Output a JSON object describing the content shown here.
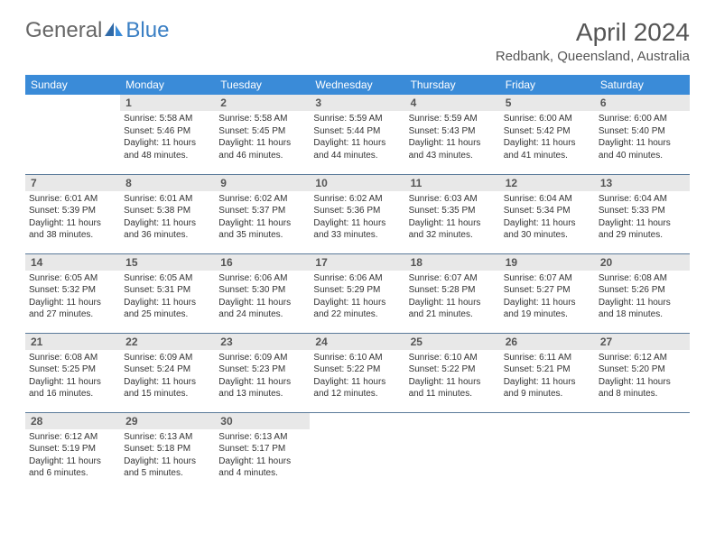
{
  "logo": {
    "text_general": "General",
    "text_blue": "Blue"
  },
  "title": "April 2024",
  "location": "Redbank, Queensland, Australia",
  "colors": {
    "header_bg": "#3a8bd8",
    "header_text": "#ffffff",
    "daynum_bg": "#e8e8e8",
    "rule": "#5a7a9a",
    "logo_blue": "#3a7fc4",
    "text": "#333333"
  },
  "weekdays": [
    "Sunday",
    "Monday",
    "Tuesday",
    "Wednesday",
    "Thursday",
    "Friday",
    "Saturday"
  ],
  "weeks": [
    [
      null,
      {
        "n": "1",
        "sr": "5:58 AM",
        "ss": "5:46 PM",
        "dl": "11 hours and 48 minutes."
      },
      {
        "n": "2",
        "sr": "5:58 AM",
        "ss": "5:45 PM",
        "dl": "11 hours and 46 minutes."
      },
      {
        "n": "3",
        "sr": "5:59 AM",
        "ss": "5:44 PM",
        "dl": "11 hours and 44 minutes."
      },
      {
        "n": "4",
        "sr": "5:59 AM",
        "ss": "5:43 PM",
        "dl": "11 hours and 43 minutes."
      },
      {
        "n": "5",
        "sr": "6:00 AM",
        "ss": "5:42 PM",
        "dl": "11 hours and 41 minutes."
      },
      {
        "n": "6",
        "sr": "6:00 AM",
        "ss": "5:40 PM",
        "dl": "11 hours and 40 minutes."
      }
    ],
    [
      {
        "n": "7",
        "sr": "6:01 AM",
        "ss": "5:39 PM",
        "dl": "11 hours and 38 minutes."
      },
      {
        "n": "8",
        "sr": "6:01 AM",
        "ss": "5:38 PM",
        "dl": "11 hours and 36 minutes."
      },
      {
        "n": "9",
        "sr": "6:02 AM",
        "ss": "5:37 PM",
        "dl": "11 hours and 35 minutes."
      },
      {
        "n": "10",
        "sr": "6:02 AM",
        "ss": "5:36 PM",
        "dl": "11 hours and 33 minutes."
      },
      {
        "n": "11",
        "sr": "6:03 AM",
        "ss": "5:35 PM",
        "dl": "11 hours and 32 minutes."
      },
      {
        "n": "12",
        "sr": "6:04 AM",
        "ss": "5:34 PM",
        "dl": "11 hours and 30 minutes."
      },
      {
        "n": "13",
        "sr": "6:04 AM",
        "ss": "5:33 PM",
        "dl": "11 hours and 29 minutes."
      }
    ],
    [
      {
        "n": "14",
        "sr": "6:05 AM",
        "ss": "5:32 PM",
        "dl": "11 hours and 27 minutes."
      },
      {
        "n": "15",
        "sr": "6:05 AM",
        "ss": "5:31 PM",
        "dl": "11 hours and 25 minutes."
      },
      {
        "n": "16",
        "sr": "6:06 AM",
        "ss": "5:30 PM",
        "dl": "11 hours and 24 minutes."
      },
      {
        "n": "17",
        "sr": "6:06 AM",
        "ss": "5:29 PM",
        "dl": "11 hours and 22 minutes."
      },
      {
        "n": "18",
        "sr": "6:07 AM",
        "ss": "5:28 PM",
        "dl": "11 hours and 21 minutes."
      },
      {
        "n": "19",
        "sr": "6:07 AM",
        "ss": "5:27 PM",
        "dl": "11 hours and 19 minutes."
      },
      {
        "n": "20",
        "sr": "6:08 AM",
        "ss": "5:26 PM",
        "dl": "11 hours and 18 minutes."
      }
    ],
    [
      {
        "n": "21",
        "sr": "6:08 AM",
        "ss": "5:25 PM",
        "dl": "11 hours and 16 minutes."
      },
      {
        "n": "22",
        "sr": "6:09 AM",
        "ss": "5:24 PM",
        "dl": "11 hours and 15 minutes."
      },
      {
        "n": "23",
        "sr": "6:09 AM",
        "ss": "5:23 PM",
        "dl": "11 hours and 13 minutes."
      },
      {
        "n": "24",
        "sr": "6:10 AM",
        "ss": "5:22 PM",
        "dl": "11 hours and 12 minutes."
      },
      {
        "n": "25",
        "sr": "6:10 AM",
        "ss": "5:22 PM",
        "dl": "11 hours and 11 minutes."
      },
      {
        "n": "26",
        "sr": "6:11 AM",
        "ss": "5:21 PM",
        "dl": "11 hours and 9 minutes."
      },
      {
        "n": "27",
        "sr": "6:12 AM",
        "ss": "5:20 PM",
        "dl": "11 hours and 8 minutes."
      }
    ],
    [
      {
        "n": "28",
        "sr": "6:12 AM",
        "ss": "5:19 PM",
        "dl": "11 hours and 6 minutes."
      },
      {
        "n": "29",
        "sr": "6:13 AM",
        "ss": "5:18 PM",
        "dl": "11 hours and 5 minutes."
      },
      {
        "n": "30",
        "sr": "6:13 AM",
        "ss": "5:17 PM",
        "dl": "11 hours and 4 minutes."
      },
      null,
      null,
      null,
      null
    ]
  ],
  "labels": {
    "sunrise": "Sunrise:",
    "sunset": "Sunset:",
    "daylight": "Daylight:"
  }
}
